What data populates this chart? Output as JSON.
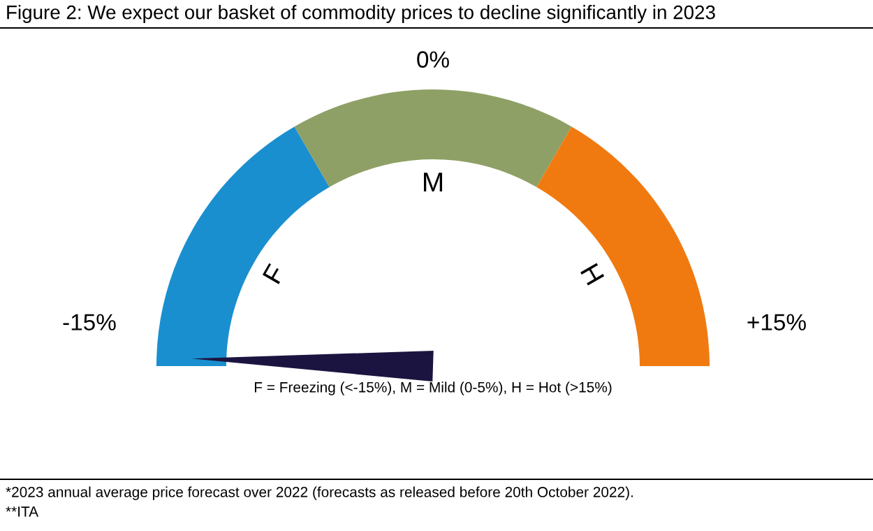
{
  "chart_data": {
    "type": "donut",
    "title": "Figure 2: We expect our basket of commodity prices to decline significantly in 2023",
    "categories": [
      "F",
      "M",
      "H"
    ],
    "values": [
      33.3,
      33.4,
      33.3
    ],
    "colors": [
      "#1a8fcf",
      "#8fa066",
      "#f07a10"
    ],
    "needle": "F",
    "xlabel": "F = Freezing (<-15%), M = Mild (0-5%), H = Hot (>15%)",
    "annotations": [
      "-15%",
      "0%",
      "+15%",
      "*2023 annual average price forecast over 2022 (forecasts as released before 20th October 2022).",
      "**ITA"
    ]
  }
}
